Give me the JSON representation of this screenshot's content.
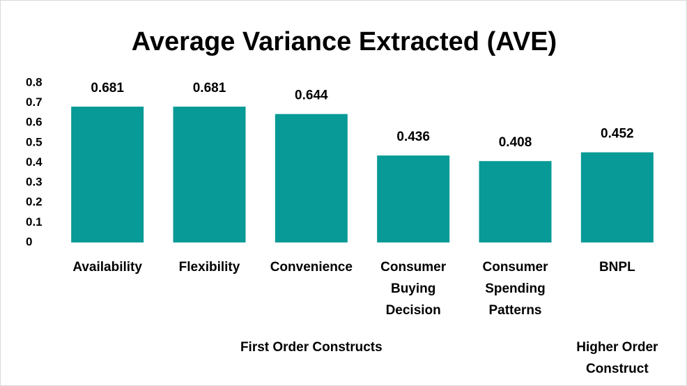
{
  "chart_data": {
    "type": "bar",
    "title": "Average Variance Extracted (AVE)",
    "categories": [
      "Availability",
      "Flexibility",
      "Convenience",
      "Consumer Buying Decision",
      "Consumer Spending Patterns",
      "BNPL"
    ],
    "values": [
      0.681,
      0.681,
      0.644,
      0.436,
      0.408,
      0.452
    ],
    "color": "#079a96",
    "ylim": [
      0,
      0.8
    ],
    "yticks": [
      0,
      0.1,
      0.2,
      0.3,
      0.4,
      0.5,
      0.6,
      0.7,
      0.8
    ],
    "grid": false,
    "group_labels": [
      "First Order Constructs",
      "Higher Order Construct"
    ]
  }
}
